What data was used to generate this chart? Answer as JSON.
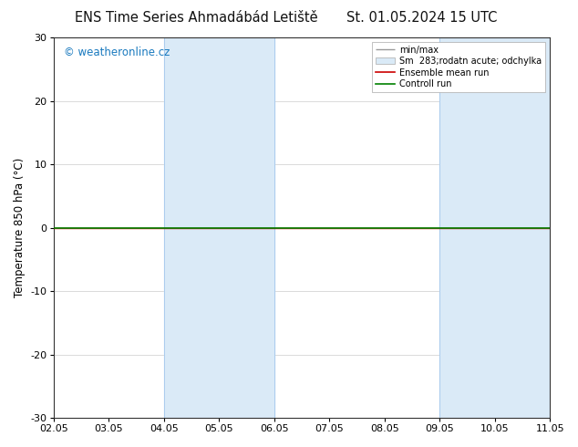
{
  "title": "ENS Time Series Ahmadábád Letiště",
  "title2": "St. 01.05.2024 15 UTC",
  "ylabel": "Temperature 850 hPa (°C)",
  "watermark": "© weatheronline.cz",
  "ylim": [
    -30,
    30
  ],
  "yticks": [
    -30,
    -20,
    -10,
    0,
    10,
    20,
    30
  ],
  "xtick_labels": [
    "02.05",
    "03.05",
    "04.05",
    "05.05",
    "06.05",
    "07.05",
    "08.05",
    "09.05",
    "10.05",
    "11.05"
  ],
  "n_xticks": 10,
  "xlim": [
    0,
    9
  ],
  "bg_color": "#ffffff",
  "plot_bg_color": "#ffffff",
  "shaded_bands": [
    {
      "x_start": 2,
      "x_end": 4,
      "color": "#daeaf7"
    },
    {
      "x_start": 7,
      "x_end": 9,
      "color": "#daeaf7"
    }
  ],
  "band_edge_color": "#aaccee",
  "band_edge_lw": 0.7,
  "control_run_line": {
    "y": 0,
    "color": "#008000",
    "lw": 1.2
  },
  "ensemble_mean_line": {
    "y": 0,
    "color": "#cc0000",
    "lw": 1.0
  },
  "legend_minmax_color": "#999999",
  "legend_sm_facecolor": "#daeaf7",
  "legend_sm_edgecolor": "#aaaaaa",
  "legend_ens_color": "#cc0000",
  "legend_ctrl_color": "#008000",
  "legend_fontsize": 7,
  "legend_label_minmax": "min/max",
  "legend_label_sm": "Sm  283;rodatn acute; odchylka",
  "legend_label_ens": "Ensemble mean run",
  "legend_label_ctrl": "Controll run",
  "title_fontsize": 10.5,
  "watermark_color": "#1a7abf",
  "watermark_fontsize": 8.5,
  "axis_label_fontsize": 8.5,
  "tick_fontsize": 8,
  "grid_color": "#cccccc",
  "grid_lw": 0.5,
  "spine_color": "#333333",
  "spine_lw": 0.8
}
